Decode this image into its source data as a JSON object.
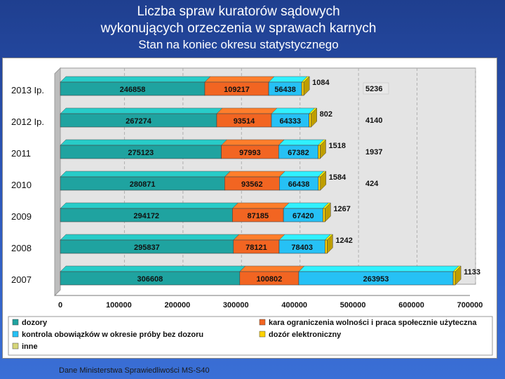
{
  "slide": {
    "title_line1": "Liczba spraw kuratorów sądowych",
    "title_line2": "wykonujących orzeczenia w sprawach karnych",
    "title_line3": "Stan na koniec okresu statystycznego",
    "source": "Dane Ministerstwa Sprawiedliwości MS-S40"
  },
  "chart_data": {
    "type": "bar",
    "orientation": "horizontal",
    "stacked": true,
    "categories": [
      "2013 Ip.",
      "2012 Ip.",
      "2011",
      "2010",
      "2009",
      "2008",
      "2007"
    ],
    "series": [
      {
        "name": "dozory",
        "color": "#1fa3a0",
        "values": [
          246858,
          267274,
          275123,
          280871,
          294172,
          295837,
          306608
        ]
      },
      {
        "name": "kara ograniczenia wolności i praca społecznie użyteczna",
        "color": "#f26522",
        "values": [
          109217,
          93514,
          97993,
          93562,
          87185,
          78121,
          100802
        ]
      },
      {
        "name": "kontrola obowiązków w okresie próby bez dozoru",
        "color": "#26c1f5",
        "values": [
          56438,
          64333,
          67382,
          66438,
          67420,
          78403,
          263953
        ]
      },
      {
        "name": "dozór elektroniczny",
        "color": "#ffd200",
        "values": [
          1084,
          802,
          1518,
          1584,
          1267,
          1242,
          1133
        ]
      },
      {
        "name": "inne",
        "color": "#d6d67a",
        "values": [
          5236,
          4140,
          1937,
          424,
          null,
          null,
          null
        ]
      }
    ],
    "xlim": [
      0,
      700000
    ],
    "xticks": [
      "0",
      "100000",
      "200000",
      "300000",
      "400000",
      "500000",
      "600000",
      "700000"
    ],
    "grid": true,
    "legend_position": "bottom"
  }
}
